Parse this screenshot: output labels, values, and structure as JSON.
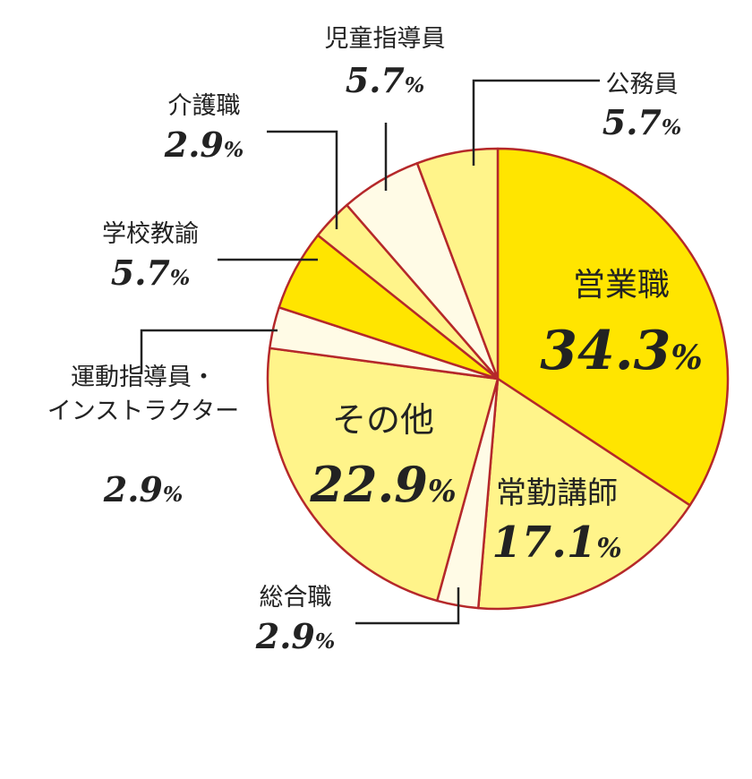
{
  "chart_data": {
    "type": "pie",
    "title": "",
    "percent_sign": "%",
    "start_angle_deg": 0,
    "direction": "clockwise",
    "slices": [
      {
        "label": "営業職",
        "value": 34.3,
        "value_text": "34.3",
        "color": "#ffe500"
      },
      {
        "label": "常勤講師",
        "value": 17.1,
        "value_text": "17.1",
        "color": "#fff48a"
      },
      {
        "label": "総合職",
        "value": 2.9,
        "value_text": "2.9",
        "color": "#fffbe6"
      },
      {
        "label": "その他",
        "value": 22.9,
        "value_text": "22.9",
        "color": "#fff48a"
      },
      {
        "label": "運動指導員・\nインストラクター",
        "value": 2.9,
        "value_text": "2.9",
        "color": "#fffbe6"
      },
      {
        "label": "学校教諭",
        "value": 5.7,
        "value_text": "5.7",
        "color": "#ffe500"
      },
      {
        "label": "介護職",
        "value": 2.9,
        "value_text": "2.9",
        "color": "#fff48a"
      },
      {
        "label": "児童指導員",
        "value": 5.7,
        "value_text": "5.7",
        "color": "#fffbe6"
      },
      {
        "label": "公務員",
        "value": 5.7,
        "value_text": "5.7",
        "color": "#fff48a"
      }
    ]
  }
}
